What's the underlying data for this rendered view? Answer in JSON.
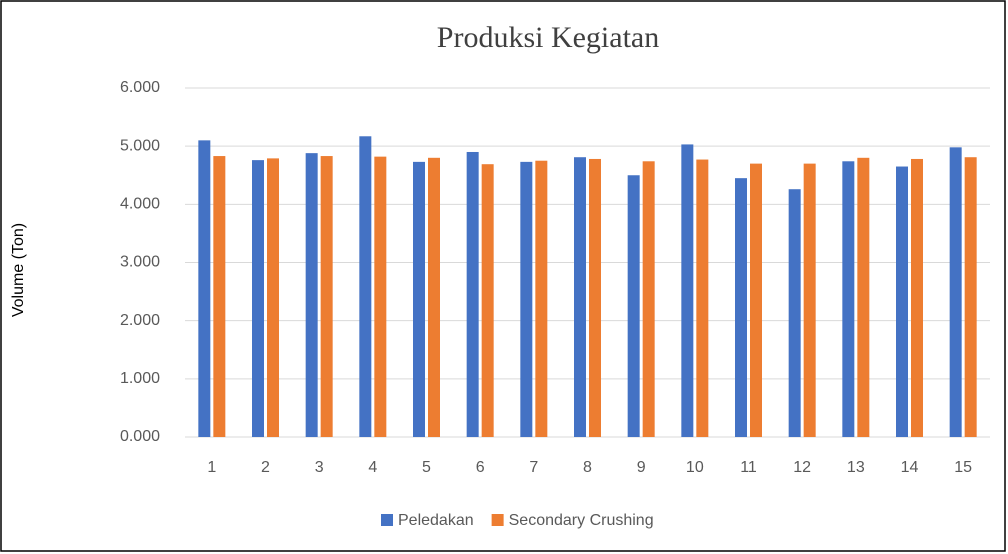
{
  "chart_data": {
    "type": "bar",
    "title": "Produksi Kegiatan",
    "y_label": "Volume (Ton)",
    "categories": [
      "1",
      "2",
      "3",
      "4",
      "5",
      "6",
      "7",
      "8",
      "9",
      "10",
      "11",
      "12",
      "13",
      "14",
      "15"
    ],
    "series": [
      {
        "name": "Peledakan",
        "color": "#4472c4",
        "values": [
          5100,
          4760,
          4880,
          5170,
          4730,
          4900,
          4730,
          4810,
          4500,
          5030,
          4450,
          4260,
          4740,
          4650,
          4980
        ]
      },
      {
        "name": "Secondary Crushing",
        "color": "#ed7d31",
        "values": [
          4830,
          4790,
          4830,
          4820,
          4800,
          4690,
          4750,
          4780,
          4740,
          4770,
          4700,
          4700,
          4800,
          4780,
          4810
        ]
      }
    ],
    "ylim": [
      0,
      6000
    ],
    "yticks": [
      {
        "value": 0,
        "label": "0.000"
      },
      {
        "value": 1000,
        "label": "1.000"
      },
      {
        "value": 2000,
        "label": "2.000"
      },
      {
        "value": 3000,
        "label": "3.000"
      },
      {
        "value": 4000,
        "label": "4.000"
      },
      {
        "value": 5000,
        "label": "5.000"
      },
      {
        "value": 6000,
        "label": "6.000"
      }
    ],
    "grid": true,
    "legend": "bottom"
  }
}
